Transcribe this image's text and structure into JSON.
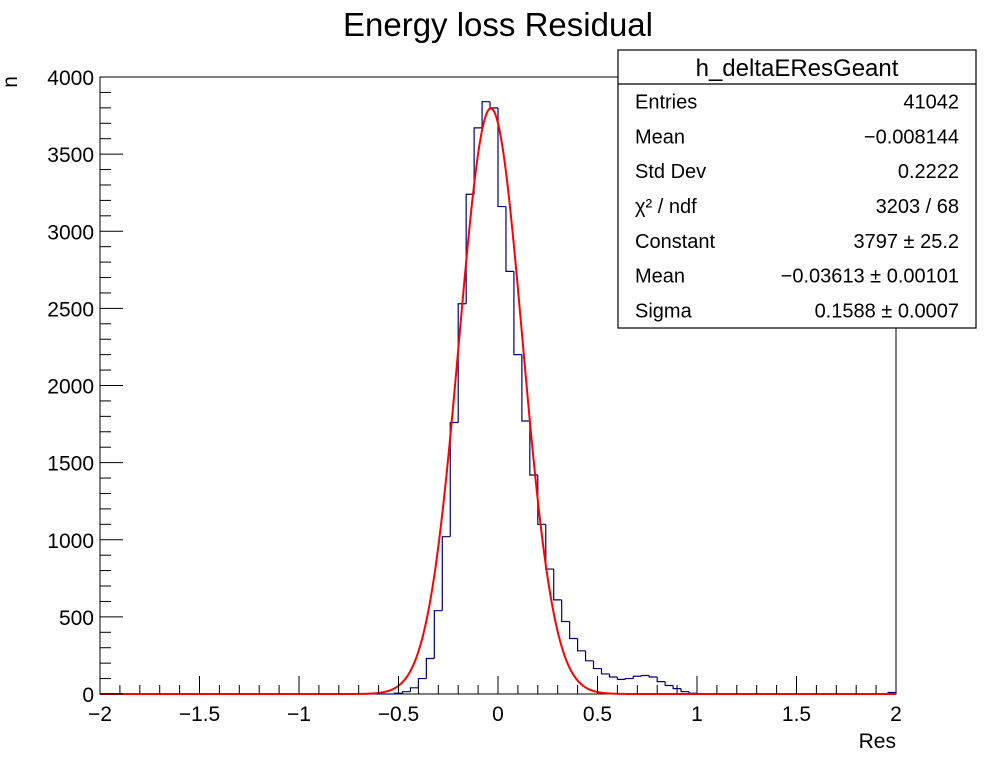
{
  "chart_data": {
    "type": "histogram",
    "title": "Energy loss Residual",
    "xlabel": "Res",
    "ylabel": "n",
    "xlim": [
      -2,
      2
    ],
    "ylim": [
      0,
      4000
    ],
    "x_ticks": [
      "−2",
      "−1.5",
      "−1",
      "−0.5",
      "0",
      "0.5",
      "1",
      "1.5",
      "2"
    ],
    "x_tick_values": [
      -2,
      -1.5,
      -1,
      -0.5,
      0,
      0.5,
      1,
      1.5,
      2
    ],
    "y_ticks": [
      "0",
      "500",
      "1000",
      "1500",
      "2000",
      "2500",
      "3000",
      "3500",
      "4000"
    ],
    "y_tick_values": [
      0,
      500,
      1000,
      1500,
      2000,
      2500,
      3000,
      3500,
      4000
    ],
    "grid": false,
    "histogram": {
      "color": "#000080",
      "bin_width": 0.04,
      "bins": [
        {
          "x0": -2.0,
          "y": 0
        },
        {
          "x0": -1.96,
          "y": 0
        },
        {
          "x0": -1.92,
          "y": 0
        },
        {
          "x0": -1.88,
          "y": 0
        },
        {
          "x0": -1.84,
          "y": 0
        },
        {
          "x0": -1.8,
          "y": 0
        },
        {
          "x0": -1.76,
          "y": 0
        },
        {
          "x0": -1.72,
          "y": 0
        },
        {
          "x0": -1.68,
          "y": 0
        },
        {
          "x0": -1.64,
          "y": 0
        },
        {
          "x0": -1.6,
          "y": 0
        },
        {
          "x0": -1.56,
          "y": 0
        },
        {
          "x0": -1.52,
          "y": 0
        },
        {
          "x0": -1.48,
          "y": 0
        },
        {
          "x0": -1.44,
          "y": 0
        },
        {
          "x0": -1.4,
          "y": 0
        },
        {
          "x0": -1.36,
          "y": 0
        },
        {
          "x0": -1.32,
          "y": 0
        },
        {
          "x0": -1.28,
          "y": 0
        },
        {
          "x0": -1.24,
          "y": 0
        },
        {
          "x0": -1.2,
          "y": 0
        },
        {
          "x0": -1.16,
          "y": 0
        },
        {
          "x0": -1.12,
          "y": 0
        },
        {
          "x0": -1.08,
          "y": 0
        },
        {
          "x0": -1.04,
          "y": 0
        },
        {
          "x0": -1.0,
          "y": 0
        },
        {
          "x0": -0.96,
          "y": 0
        },
        {
          "x0": -0.92,
          "y": 0
        },
        {
          "x0": -0.88,
          "y": 0
        },
        {
          "x0": -0.84,
          "y": 0
        },
        {
          "x0": -0.8,
          "y": 0
        },
        {
          "x0": -0.76,
          "y": 0
        },
        {
          "x0": -0.72,
          "y": 0
        },
        {
          "x0": -0.68,
          "y": 0
        },
        {
          "x0": -0.64,
          "y": 0
        },
        {
          "x0": -0.6,
          "y": 0
        },
        {
          "x0": -0.56,
          "y": 0
        },
        {
          "x0": -0.52,
          "y": 5
        },
        {
          "x0": -0.48,
          "y": 15
        },
        {
          "x0": -0.44,
          "y": 40
        },
        {
          "x0": -0.4,
          "y": 100
        },
        {
          "x0": -0.36,
          "y": 230
        },
        {
          "x0": -0.32,
          "y": 540
        },
        {
          "x0": -0.28,
          "y": 1020
        },
        {
          "x0": -0.24,
          "y": 1760
        },
        {
          "x0": -0.2,
          "y": 2530
        },
        {
          "x0": -0.16,
          "y": 3240
        },
        {
          "x0": -0.12,
          "y": 3670
        },
        {
          "x0": -0.08,
          "y": 3840
        },
        {
          "x0": -0.04,
          "y": 3800
        },
        {
          "x0": 0.0,
          "y": 3160
        },
        {
          "x0": 0.04,
          "y": 2740
        },
        {
          "x0": 0.08,
          "y": 2200
        },
        {
          "x0": 0.12,
          "y": 1770
        },
        {
          "x0": 0.16,
          "y": 1420
        },
        {
          "x0": 0.2,
          "y": 1100
        },
        {
          "x0": 0.24,
          "y": 810
        },
        {
          "x0": 0.28,
          "y": 610
        },
        {
          "x0": 0.32,
          "y": 470
        },
        {
          "x0": 0.36,
          "y": 360
        },
        {
          "x0": 0.4,
          "y": 280
        },
        {
          "x0": 0.44,
          "y": 215
        },
        {
          "x0": 0.48,
          "y": 165
        },
        {
          "x0": 0.52,
          "y": 130
        },
        {
          "x0": 0.56,
          "y": 110
        },
        {
          "x0": 0.6,
          "y": 95
        },
        {
          "x0": 0.64,
          "y": 100
        },
        {
          "x0": 0.68,
          "y": 115
        },
        {
          "x0": 0.72,
          "y": 120
        },
        {
          "x0": 0.76,
          "y": 110
        },
        {
          "x0": 0.8,
          "y": 80
        },
        {
          "x0": 0.84,
          "y": 55
        },
        {
          "x0": 0.88,
          "y": 35
        },
        {
          "x0": 0.92,
          "y": 15
        },
        {
          "x0": 0.96,
          "y": 5
        },
        {
          "x0": 1.0,
          "y": 0
        },
        {
          "x0": 1.04,
          "y": 0
        },
        {
          "x0": 1.08,
          "y": 0
        },
        {
          "x0": 1.12,
          "y": 0
        },
        {
          "x0": 1.16,
          "y": 0
        },
        {
          "x0": 1.2,
          "y": 0
        },
        {
          "x0": 1.24,
          "y": 0
        },
        {
          "x0": 1.28,
          "y": 0
        },
        {
          "x0": 1.32,
          "y": 0
        },
        {
          "x0": 1.36,
          "y": 0
        },
        {
          "x0": 1.4,
          "y": 0
        },
        {
          "x0": 1.44,
          "y": 0
        },
        {
          "x0": 1.48,
          "y": 0
        },
        {
          "x0": 1.52,
          "y": 0
        },
        {
          "x0": 1.56,
          "y": 0
        },
        {
          "x0": 1.6,
          "y": 0
        },
        {
          "x0": 1.64,
          "y": 0
        },
        {
          "x0": 1.68,
          "y": 0
        },
        {
          "x0": 1.72,
          "y": 0
        },
        {
          "x0": 1.76,
          "y": 0
        },
        {
          "x0": 1.8,
          "y": 0
        },
        {
          "x0": 1.84,
          "y": 0
        },
        {
          "x0": 1.88,
          "y": 0
        },
        {
          "x0": 1.92,
          "y": 0
        },
        {
          "x0": 1.96,
          "y": 10
        }
      ]
    },
    "fit": {
      "type": "gaus",
      "color": "#ff0000",
      "constant": 3797,
      "mean": -0.03613,
      "sigma": 0.1588,
      "x_range": [
        -2,
        2
      ]
    },
    "stats_box": {
      "placement": "top-right",
      "title": "h_deltaEResGeant",
      "rows": [
        {
          "label": "Entries",
          "value": "41042"
        },
        {
          "label": "Mean",
          "value": "−0.008144"
        },
        {
          "label": "Std Dev",
          "value": "0.2222"
        },
        {
          "label": "χ² / ndf",
          "value": "3203 / 68"
        },
        {
          "label": "Constant",
          "value": "3797 ± 25.2"
        },
        {
          "label": "Mean",
          "value": "−0.03613 ± 0.00101"
        },
        {
          "label": "Sigma",
          "value": "0.1588 ± 0.0007"
        }
      ]
    }
  }
}
